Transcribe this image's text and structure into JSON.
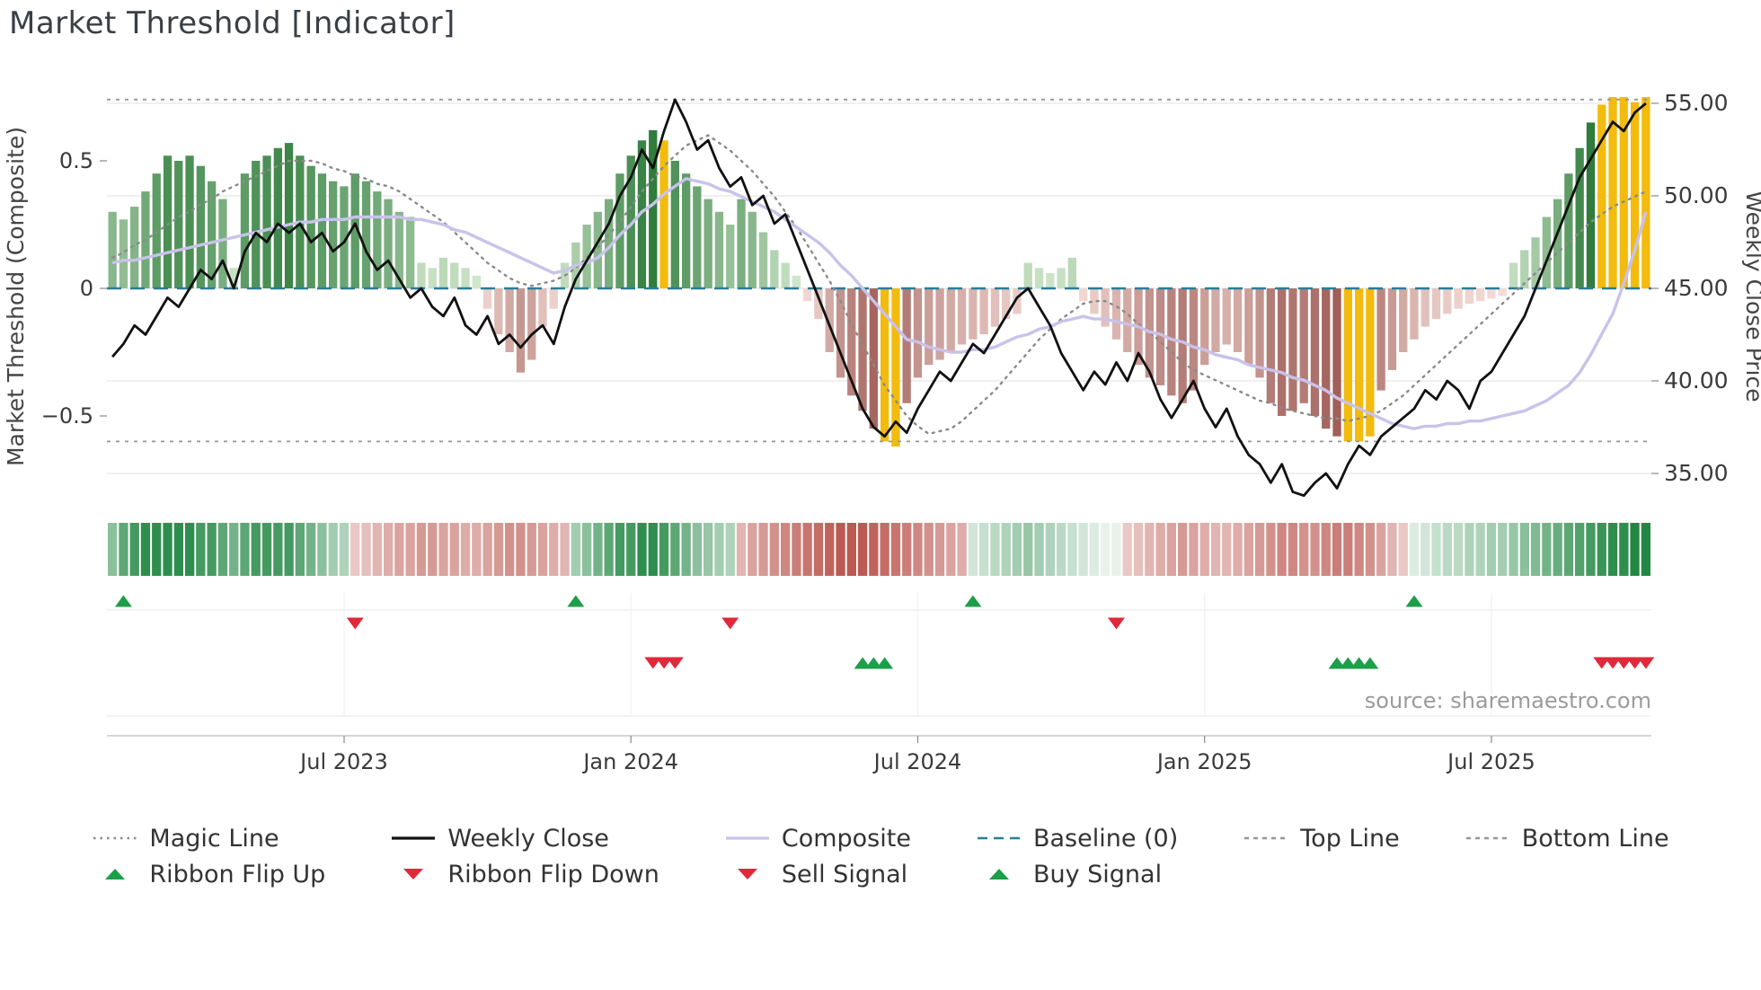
{
  "title": "Market Threshold [Indicator]",
  "source": "source: sharemaestro.com",
  "colors": {
    "bar_green_light": "#dcefd6",
    "bar_green_dark": "#2f7c3c",
    "bar_red_light": "#f8e2dd",
    "bar_red_dark": "#9a564f",
    "bar_gold": "#f2bb0e",
    "ribbon_green": "#17813a",
    "ribbon_red": "#b5473f",
    "weekly_close": "#111111",
    "composite_line": "#c9c2ea",
    "magic_line": "#8a8a8a",
    "baseline": "#2a7d9c",
    "threshold_line": "#969696",
    "signal_green": "#1d9e48",
    "signal_red": "#e0293a",
    "grid": "#e8e8e8",
    "axis_text": "#3a3a3a"
  },
  "chart_data": {
    "type": "bar+line",
    "weeks": 140,
    "x_axis": {
      "labels": [
        "Jul 2023",
        "Jan 2024",
        "Jul 2024",
        "Jan 2025",
        "Jul 2025"
      ],
      "indices": [
        21,
        47,
        73,
        99,
        125
      ]
    },
    "left_axis": {
      "label": "Market Threshold (Composite)",
      "ticks": [
        {
          "value": 0.5,
          "label": "0.5"
        },
        {
          "value": 0,
          "label": "0"
        },
        {
          "value": -0.5,
          "label": "−0.5"
        }
      ],
      "range": [
        -0.82,
        0.82
      ]
    },
    "right_axis": {
      "label": "Weekly Close Price",
      "ticks": [
        55,
        50,
        45,
        40,
        35
      ],
      "tick_labels": [
        "55.00",
        "50.00",
        "45.00",
        "40.00",
        "35.00"
      ],
      "range": [
        33,
        56.5
      ]
    },
    "top_line": 0.74,
    "bottom_line": -0.6,
    "baseline": 0,
    "composite_bars": [
      0.3,
      0.27,
      0.32,
      0.38,
      0.45,
      0.52,
      0.5,
      0.52,
      0.48,
      0.42,
      0.35,
      0.08,
      0.45,
      0.5,
      0.52,
      0.55,
      0.57,
      0.52,
      0.48,
      0.45,
      0.42,
      0.4,
      0.45,
      0.42,
      0.38,
      0.35,
      0.3,
      0.28,
      0.1,
      0.08,
      0.12,
      0.1,
      0.08,
      0.05,
      -0.08,
      -0.18,
      -0.25,
      -0.33,
      -0.28,
      -0.15,
      -0.08,
      0.1,
      0.18,
      0.25,
      0.3,
      0.35,
      0.45,
      0.52,
      0.58,
      0.62,
      0.58,
      0.5,
      0.45,
      0.4,
      0.35,
      0.3,
      0.25,
      0.35,
      0.3,
      0.22,
      0.15,
      0.1,
      0.05,
      -0.05,
      -0.12,
      -0.25,
      -0.35,
      -0.42,
      -0.48,
      -0.55,
      -0.6,
      -0.62,
      -0.45,
      -0.35,
      -0.3,
      -0.28,
      -0.25,
      -0.22,
      -0.2,
      -0.18,
      -0.15,
      -0.12,
      -0.1,
      0.1,
      0.08,
      0.06,
      0.08,
      0.12,
      -0.05,
      -0.1,
      -0.15,
      -0.2,
      -0.25,
      -0.3,
      -0.35,
      -0.38,
      -0.42,
      -0.45,
      -0.4,
      -0.3,
      -0.25,
      -0.22,
      -0.25,
      -0.3,
      -0.35,
      -0.45,
      -0.5,
      -0.48,
      -0.45,
      -0.5,
      -0.55,
      -0.58,
      -0.6,
      -0.6,
      -0.58,
      -0.4,
      -0.32,
      -0.25,
      -0.2,
      -0.15,
      -0.12,
      -0.1,
      -0.08,
      -0.06,
      -0.05,
      -0.04,
      -0.03,
      0.1,
      0.15,
      0.2,
      0.28,
      0.35,
      0.45,
      0.55,
      0.65,
      0.72,
      0.75,
      0.75,
      0.73,
      0.75
    ],
    "gold_bar_indices": [
      50,
      70,
      71,
      112,
      113,
      114,
      135,
      136,
      137,
      138,
      139
    ],
    "weekly_close": [
      41.3,
      42.0,
      43.0,
      42.5,
      43.5,
      44.5,
      44.0,
      45.0,
      46.0,
      45.5,
      46.5,
      45.0,
      47.0,
      48.0,
      47.5,
      48.5,
      48.0,
      48.5,
      47.5,
      48.0,
      47.0,
      47.5,
      48.5,
      47.0,
      46.0,
      46.5,
      45.5,
      44.5,
      45.0,
      44.0,
      43.5,
      44.5,
      43.0,
      42.5,
      43.5,
      42.0,
      42.5,
      41.8,
      42.5,
      43.0,
      42.0,
      44.0,
      45.5,
      46.5,
      47.5,
      48.5,
      50.0,
      51.0,
      52.5,
      51.5,
      53.5,
      55.2,
      54.0,
      52.5,
      53.0,
      51.5,
      50.5,
      51.0,
      49.5,
      50.0,
      48.5,
      49.0,
      47.5,
      46.0,
      44.5,
      43.0,
      41.5,
      40.0,
      38.5,
      37.5,
      37.0,
      37.8,
      37.2,
      38.5,
      39.5,
      40.5,
      40.0,
      41.0,
      42.0,
      41.5,
      42.5,
      43.5,
      44.5,
      45.0,
      44.0,
      43.0,
      41.5,
      40.5,
      39.5,
      40.5,
      39.8,
      41.0,
      40.0,
      41.5,
      40.5,
      39.0,
      38.0,
      39.0,
      40.0,
      38.5,
      37.5,
      38.5,
      37.0,
      36.0,
      35.5,
      34.5,
      35.5,
      34.0,
      33.8,
      34.5,
      35.0,
      34.2,
      35.5,
      36.5,
      36.0,
      37.0,
      37.5,
      38.0,
      38.5,
      39.5,
      39.0,
      40.0,
      39.5,
      38.5,
      40.0,
      40.5,
      41.5,
      42.5,
      43.5,
      45.0,
      46.5,
      48.0,
      49.5,
      51.0,
      52.0,
      53.0,
      54.0,
      53.5,
      54.5,
      55.0
    ],
    "composite_line": [
      0.1,
      0.11,
      0.11,
      0.12,
      0.13,
      0.14,
      0.15,
      0.16,
      0.17,
      0.18,
      0.19,
      0.2,
      0.21,
      0.22,
      0.23,
      0.24,
      0.25,
      0.26,
      0.26,
      0.27,
      0.27,
      0.27,
      0.28,
      0.28,
      0.28,
      0.28,
      0.28,
      0.27,
      0.27,
      0.26,
      0.25,
      0.23,
      0.22,
      0.2,
      0.18,
      0.16,
      0.14,
      0.12,
      0.1,
      0.08,
      0.06,
      0.07,
      0.09,
      0.1,
      0.12,
      0.16,
      0.21,
      0.25,
      0.3,
      0.33,
      0.37,
      0.4,
      0.43,
      0.42,
      0.41,
      0.39,
      0.38,
      0.36,
      0.34,
      0.32,
      0.3,
      0.27,
      0.24,
      0.21,
      0.18,
      0.14,
      0.09,
      0.05,
      0.0,
      -0.05,
      -0.1,
      -0.15,
      -0.2,
      -0.21,
      -0.23,
      -0.24,
      -0.25,
      -0.25,
      -0.24,
      -0.24,
      -0.23,
      -0.21,
      -0.19,
      -0.18,
      -0.16,
      -0.15,
      -0.13,
      -0.12,
      -0.11,
      -0.12,
      -0.12,
      -0.13,
      -0.14,
      -0.15,
      -0.17,
      -0.18,
      -0.2,
      -0.21,
      -0.23,
      -0.24,
      -0.26,
      -0.27,
      -0.28,
      -0.3,
      -0.31,
      -0.32,
      -0.33,
      -0.35,
      -0.36,
      -0.38,
      -0.4,
      -0.43,
      -0.45,
      -0.47,
      -0.49,
      -0.51,
      -0.53,
      -0.54,
      -0.55,
      -0.54,
      -0.54,
      -0.53,
      -0.53,
      -0.52,
      -0.52,
      -0.51,
      -0.5,
      -0.49,
      -0.48,
      -0.46,
      -0.44,
      -0.41,
      -0.38,
      -0.33,
      -0.26,
      -0.18,
      -0.1,
      0.02,
      0.15,
      0.3
    ],
    "magic_line": [
      0.12,
      0.14,
      0.17,
      0.19,
      0.22,
      0.25,
      0.28,
      0.3,
      0.33,
      0.35,
      0.38,
      0.4,
      0.42,
      0.44,
      0.46,
      0.48,
      0.5,
      0.5,
      0.5,
      0.49,
      0.47,
      0.46,
      0.44,
      0.43,
      0.41,
      0.4,
      0.38,
      0.35,
      0.32,
      0.29,
      0.26,
      0.22,
      0.18,
      0.14,
      0.1,
      0.07,
      0.04,
      0.02,
      0.01,
      0.02,
      0.03,
      0.05,
      0.08,
      0.12,
      0.16,
      0.21,
      0.26,
      0.32,
      0.38,
      0.43,
      0.48,
      0.52,
      0.56,
      0.58,
      0.6,
      0.57,
      0.54,
      0.5,
      0.46,
      0.41,
      0.36,
      0.3,
      0.24,
      0.17,
      0.1,
      0.03,
      -0.05,
      -0.14,
      -0.22,
      -0.3,
      -0.38,
      -0.44,
      -0.5,
      -0.54,
      -0.57,
      -0.56,
      -0.55,
      -0.52,
      -0.48,
      -0.44,
      -0.4,
      -0.35,
      -0.3,
      -0.25,
      -0.2,
      -0.16,
      -0.12,
      -0.09,
      -0.06,
      -0.05,
      -0.05,
      -0.07,
      -0.1,
      -0.14,
      -0.17,
      -0.21,
      -0.25,
      -0.29,
      -0.32,
      -0.34,
      -0.36,
      -0.38,
      -0.4,
      -0.42,
      -0.44,
      -0.45,
      -0.47,
      -0.48,
      -0.49,
      -0.5,
      -0.51,
      -0.51,
      -0.52,
      -0.51,
      -0.5,
      -0.48,
      -0.45,
      -0.42,
      -0.38,
      -0.34,
      -0.3,
      -0.26,
      -0.22,
      -0.18,
      -0.14,
      -0.1,
      -0.06,
      -0.02,
      0.02,
      0.06,
      0.1,
      0.14,
      0.18,
      0.22,
      0.26,
      0.29,
      0.32,
      0.34,
      0.36,
      0.38
    ],
    "ribbon": [
      0.5,
      0.7,
      0.8,
      0.9,
      0.9,
      0.9,
      0.9,
      0.9,
      0.8,
      0.8,
      0.7,
      0.6,
      0.7,
      0.8,
      0.8,
      0.8,
      0.8,
      0.7,
      0.6,
      0.5,
      0.4,
      0.35,
      -0.3,
      -0.35,
      -0.4,
      -0.45,
      -0.5,
      -0.5,
      -0.55,
      -0.55,
      -0.5,
      -0.5,
      -0.45,
      -0.45,
      -0.5,
      -0.55,
      -0.6,
      -0.6,
      -0.55,
      -0.5,
      -0.45,
      -0.4,
      0.4,
      0.5,
      0.6,
      0.7,
      0.8,
      0.8,
      0.9,
      0.9,
      0.8,
      0.7,
      0.6,
      0.5,
      0.45,
      0.4,
      0.35,
      -0.4,
      -0.5,
      -0.55,
      -0.6,
      -0.65,
      -0.7,
      -0.75,
      -0.8,
      -0.85,
      -0.9,
      -0.9,
      -0.9,
      -0.85,
      -0.8,
      -0.75,
      -0.7,
      -0.65,
      -0.6,
      -0.55,
      -0.5,
      -0.45,
      0.2,
      0.25,
      0.3,
      0.35,
      0.4,
      0.45,
      0.4,
      0.35,
      0.3,
      0.25,
      0.2,
      0.15,
      0.1,
      0.1,
      -0.3,
      -0.35,
      -0.4,
      -0.45,
      -0.5,
      -0.55,
      -0.5,
      -0.45,
      -0.4,
      -0.4,
      -0.45,
      -0.5,
      -0.55,
      -0.6,
      -0.65,
      -0.65,
      -0.6,
      -0.6,
      -0.65,
      -0.7,
      -0.7,
      -0.65,
      -0.6,
      -0.5,
      -0.4,
      -0.3,
      0.15,
      0.2,
      0.25,
      0.3,
      0.3,
      0.35,
      0.35,
      0.4,
      0.4,
      0.45,
      0.5,
      0.55,
      0.6,
      0.65,
      0.7,
      0.75,
      0.8,
      0.85,
      0.9,
      0.9,
      0.95,
      0.95
    ],
    "signals": {
      "ribbon_flip_up": [
        1,
        42,
        78,
        118
      ],
      "ribbon_flip_down": [
        22,
        56,
        91
      ],
      "sell": [
        49,
        50,
        51,
        135,
        136,
        137,
        138,
        139
      ],
      "buy": [
        68,
        69,
        70,
        111,
        112,
        113,
        114
      ]
    }
  },
  "legend": {
    "columns": [
      [
        {
          "label": "Magic Line",
          "swatch": "line",
          "style": "dotted",
          "color": "#8a8a8a"
        },
        {
          "label": "Ribbon Flip Up",
          "swatch": "marker",
          "shape": "up",
          "color": "#1d9e48"
        }
      ],
      [
        {
          "label": "Weekly Close",
          "swatch": "line",
          "style": "solid",
          "color": "#111111"
        },
        {
          "label": "Ribbon Flip Down",
          "swatch": "marker",
          "shape": "down",
          "color": "#e0293a"
        }
      ],
      [
        {
          "label": "Composite",
          "swatch": "line",
          "style": "solid",
          "color": "#c9c2ea"
        },
        {
          "label": "Sell Signal",
          "swatch": "marker",
          "shape": "down",
          "color": "#e0293a"
        }
      ],
      [
        {
          "label": "Baseline (0)",
          "swatch": "line",
          "style": "dashed",
          "color": "#2a7d9c"
        },
        {
          "label": "Buy Signal",
          "swatch": "marker",
          "shape": "up",
          "color": "#1d9e48"
        }
      ],
      [
        {
          "label": "Top Line",
          "swatch": "line",
          "style": "dashed-fine",
          "color": "#969696"
        }
      ],
      [
        {
          "label": "Bottom Line",
          "swatch": "line",
          "style": "dashed-fine",
          "color": "#969696"
        }
      ]
    ]
  }
}
